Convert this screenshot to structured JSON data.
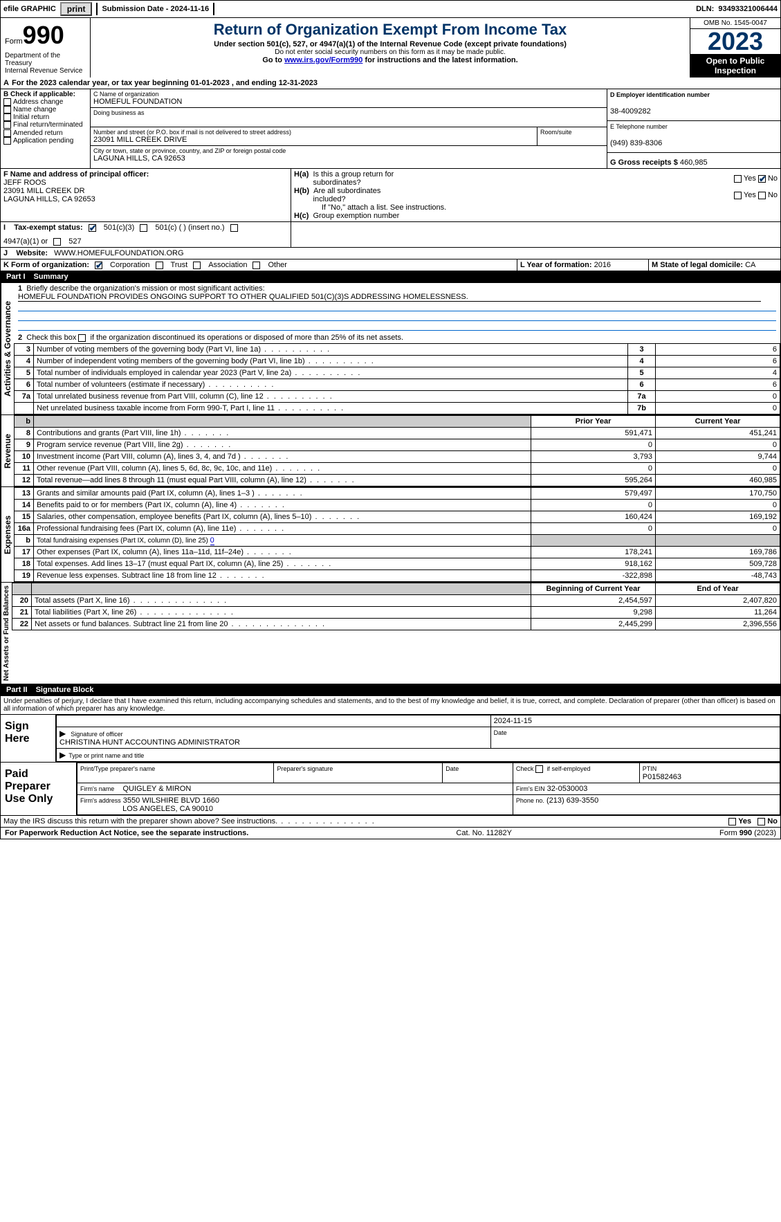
{
  "topbar": {
    "efile": "efile GRAPHIC",
    "print": "print",
    "submission": "Submission Date - 2024-11-16",
    "dln_label": "DLN:",
    "dln": "93493321006444"
  },
  "header": {
    "form_word": "Form",
    "form_num": "990",
    "dept": "Department of the Treasury",
    "irs": "Internal Revenue Service",
    "title": "Return of Organization Exempt From Income Tax",
    "subtitle": "Under section 501(c), 527, or 4947(a)(1) of the Internal Revenue Code (except private foundations)",
    "warn": "Do not enter social security numbers on this form as it may be made public.",
    "goto_pre": "Go to ",
    "goto_link": "www.irs.gov/Form990",
    "goto_post": " for instructions and the latest information.",
    "omb": "OMB No. 1545-0047",
    "year": "2023",
    "open": "Open to Public Inspection"
  },
  "a": {
    "line": "For the 2023 calendar year, or tax year beginning 01-01-2023    , and ending 12-31-2023",
    "A": "A"
  },
  "b": {
    "label": "B Check if applicable:",
    "opts": [
      "Address change",
      "Name change",
      "Initial return",
      "Final return/terminated",
      "Amended return",
      "Application pending"
    ]
  },
  "c": {
    "name_lbl": "C Name of organization",
    "name": "HOMEFUL FOUNDATION",
    "dba_lbl": "Doing business as",
    "addr_lbl": "Number and street (or P.O. box if mail is not delivered to street address)",
    "room_lbl": "Room/suite",
    "addr": "23091 MILL CREEK DRIVE",
    "city_lbl": "City or town, state or province, country, and ZIP or foreign postal code",
    "city": "LAGUNA HILLS, CA  92653"
  },
  "d": {
    "lbl": "D Employer identification number",
    "val": "38-4009282"
  },
  "e": {
    "lbl": "E Telephone number",
    "val": "(949) 839-8306"
  },
  "g": {
    "lbl": "G Gross receipts $",
    "val": "460,985"
  },
  "f": {
    "lbl": "F  Name and address of principal officer:",
    "name": "JEFF ROOS",
    "addr": "23091 MILL CREEK DR",
    "city": "LAGUNA HILLS, CA  92653"
  },
  "h": {
    "a": "H(a)  Is this a group return for subordinates?",
    "b": "H(b)  Are all subordinates included?",
    "note": "If \"No,\" attach a list. See instructions.",
    "c": "H(c)  Group exemption number",
    "yes": "Yes",
    "no": "No"
  },
  "i": {
    "lbl": "I    Tax-exempt status:",
    "o1": "501(c)(3)",
    "o2": "501(c) (  ) (insert no.)",
    "o3": "4947(a)(1) or",
    "o4": "527"
  },
  "j": {
    "lbl": "J    Website:",
    "val": "WWW.HOMEFULFOUNDATION.ORG"
  },
  "k": {
    "lbl": "K Form of organization:",
    "o1": "Corporation",
    "o2": "Trust",
    "o3": "Association",
    "o4": "Other"
  },
  "l": {
    "lbl": "L Year of formation:",
    "val": "2016"
  },
  "m": {
    "lbl": "M State of legal domicile:",
    "val": "CA"
  },
  "part1": {
    "num": "Part I",
    "title": "Summary"
  },
  "p1": {
    "l1": "Briefly describe the organization's mission or most significant activities:",
    "mission": "HOMEFUL FOUNDATION PROVIDES ONGOING SUPPORT TO OTHER QUALIFIED 501(C)(3)S ADDRESSING HOMELESSNESS.",
    "l2": "Check this box        if the organization discontinued its operations or disposed of more than 25% of its net assets.",
    "rows_gov": [
      {
        "n": "3",
        "t": "Number of voting members of the governing body (Part VI, line 1a)",
        "k": "3",
        "v": "6"
      },
      {
        "n": "4",
        "t": "Number of independent voting members of the governing body (Part VI, line 1b)",
        "k": "4",
        "v": "6"
      },
      {
        "n": "5",
        "t": "Total number of individuals employed in calendar year 2023 (Part V, line 2a)",
        "k": "5",
        "v": "4"
      },
      {
        "n": "6",
        "t": "Total number of volunteers (estimate if necessary)",
        "k": "6",
        "v": "6"
      },
      {
        "n": "7a",
        "t": "Total unrelated business revenue from Part VIII, column (C), line 12",
        "k": "7a",
        "v": "0"
      },
      {
        "n": "",
        "t": "Net unrelated business taxable income from Form 990-T, Part I, line 11",
        "k": "7b",
        "v": "0"
      }
    ],
    "col_py": "Prior Year",
    "col_cy": "Current Year",
    "rows_rev": [
      {
        "n": "8",
        "t": "Contributions and grants (Part VIII, line 1h)",
        "py": "591,471",
        "cy": "451,241"
      },
      {
        "n": "9",
        "t": "Program service revenue (Part VIII, line 2g)",
        "py": "0",
        "cy": "0"
      },
      {
        "n": "10",
        "t": "Investment income (Part VIII, column (A), lines 3, 4, and 7d )",
        "py": "3,793",
        "cy": "9,744"
      },
      {
        "n": "11",
        "t": "Other revenue (Part VIII, column (A), lines 5, 6d, 8c, 9c, 10c, and 11e)",
        "py": "0",
        "cy": "0"
      },
      {
        "n": "12",
        "t": "Total revenue—add lines 8 through 11 (must equal Part VIII, column (A), line 12)",
        "py": "595,264",
        "cy": "460,985"
      }
    ],
    "rows_exp": [
      {
        "n": "13",
        "t": "Grants and similar amounts paid (Part IX, column (A), lines 1–3 )",
        "py": "579,497",
        "cy": "170,750"
      },
      {
        "n": "14",
        "t": "Benefits paid to or for members (Part IX, column (A), line 4)",
        "py": "0",
        "cy": "0"
      },
      {
        "n": "15",
        "t": "Salaries, other compensation, employee benefits (Part IX, column (A), lines 5–10)",
        "py": "160,424",
        "cy": "169,192"
      },
      {
        "n": "16a",
        "t": "Professional fundraising fees (Part IX, column (A), line 11e)",
        "py": "0",
        "cy": "0"
      },
      {
        "n": "b",
        "t": "Total fundraising expenses (Part IX, column (D), line 25) ",
        "sub": "0",
        "grey": true
      },
      {
        "n": "17",
        "t": "Other expenses (Part IX, column (A), lines 11a–11d, 11f–24e)",
        "py": "178,241",
        "cy": "169,786"
      },
      {
        "n": "18",
        "t": "Total expenses. Add lines 13–17 (must equal Part IX, column (A), line 25)",
        "py": "918,162",
        "cy": "509,728"
      },
      {
        "n": "19",
        "t": "Revenue less expenses. Subtract line 18 from line 12",
        "py": "-322,898",
        "cy": "-48,743"
      }
    ],
    "col_boy": "Beginning of Current Year",
    "col_eoy": "End of Year",
    "rows_na": [
      {
        "n": "20",
        "t": "Total assets (Part X, line 16)",
        "py": "2,454,597",
        "cy": "2,407,820"
      },
      {
        "n": "21",
        "t": "Total liabilities (Part X, line 26)",
        "py": "9,298",
        "cy": "11,264"
      },
      {
        "n": "22",
        "t": "Net assets or fund balances. Subtract line 21 from line 20",
        "py": "2,445,299",
        "cy": "2,396,556"
      }
    ]
  },
  "sections": {
    "gov": "Activities & Governance",
    "rev": "Revenue",
    "exp": "Expenses",
    "na": "Net Assets or Fund Balances"
  },
  "part2": {
    "num": "Part II",
    "title": "Signature Block"
  },
  "decl": "Under penalties of perjury, I declare that I have examined this return, including accompanying schedules and statements, and to the best of my knowledge and belief, it is true, correct, and complete. Declaration of preparer (other than officer) is based on all information of which preparer has any knowledge.",
  "sign": {
    "here": "Sign Here",
    "sig_lbl": "Signature of officer",
    "date_lbl": "Date",
    "date": "2024-11-15",
    "officer": "CHRISTINA HUNT  ACCOUNTING ADMINISTRATOR",
    "type_lbl": "Type or print name and title"
  },
  "prep": {
    "label": "Paid Preparer Use Only",
    "c1": "Print/Type preparer's name",
    "c2": "Preparer's signature",
    "c3": "Date",
    "c4_pre": "Check",
    "c4_post": "if self-employed",
    "ptin_lbl": "PTIN",
    "ptin": "P01582463",
    "firm_lbl": "Firm's name",
    "firm": "QUIGLEY & MIRON",
    "ein_lbl": "Firm's EIN",
    "ein": "32-0530003",
    "addr_lbl": "Firm's address",
    "addr1": "3550 WILSHIRE BLVD 1660",
    "addr2": "LOS ANGELES, CA  90010",
    "phone_lbl": "Phone no.",
    "phone": "(213) 639-3550"
  },
  "discuss": "May the IRS discuss this return with the preparer shown above? See instructions.",
  "footer": {
    "left": "For Paperwork Reduction Act Notice, see the separate instructions.",
    "mid": "Cat. No. 11282Y",
    "right_pre": "Form ",
    "right_b": "990",
    "right_post": " (2023)"
  },
  "yn": {
    "yes": "Yes",
    "no": "No"
  }
}
